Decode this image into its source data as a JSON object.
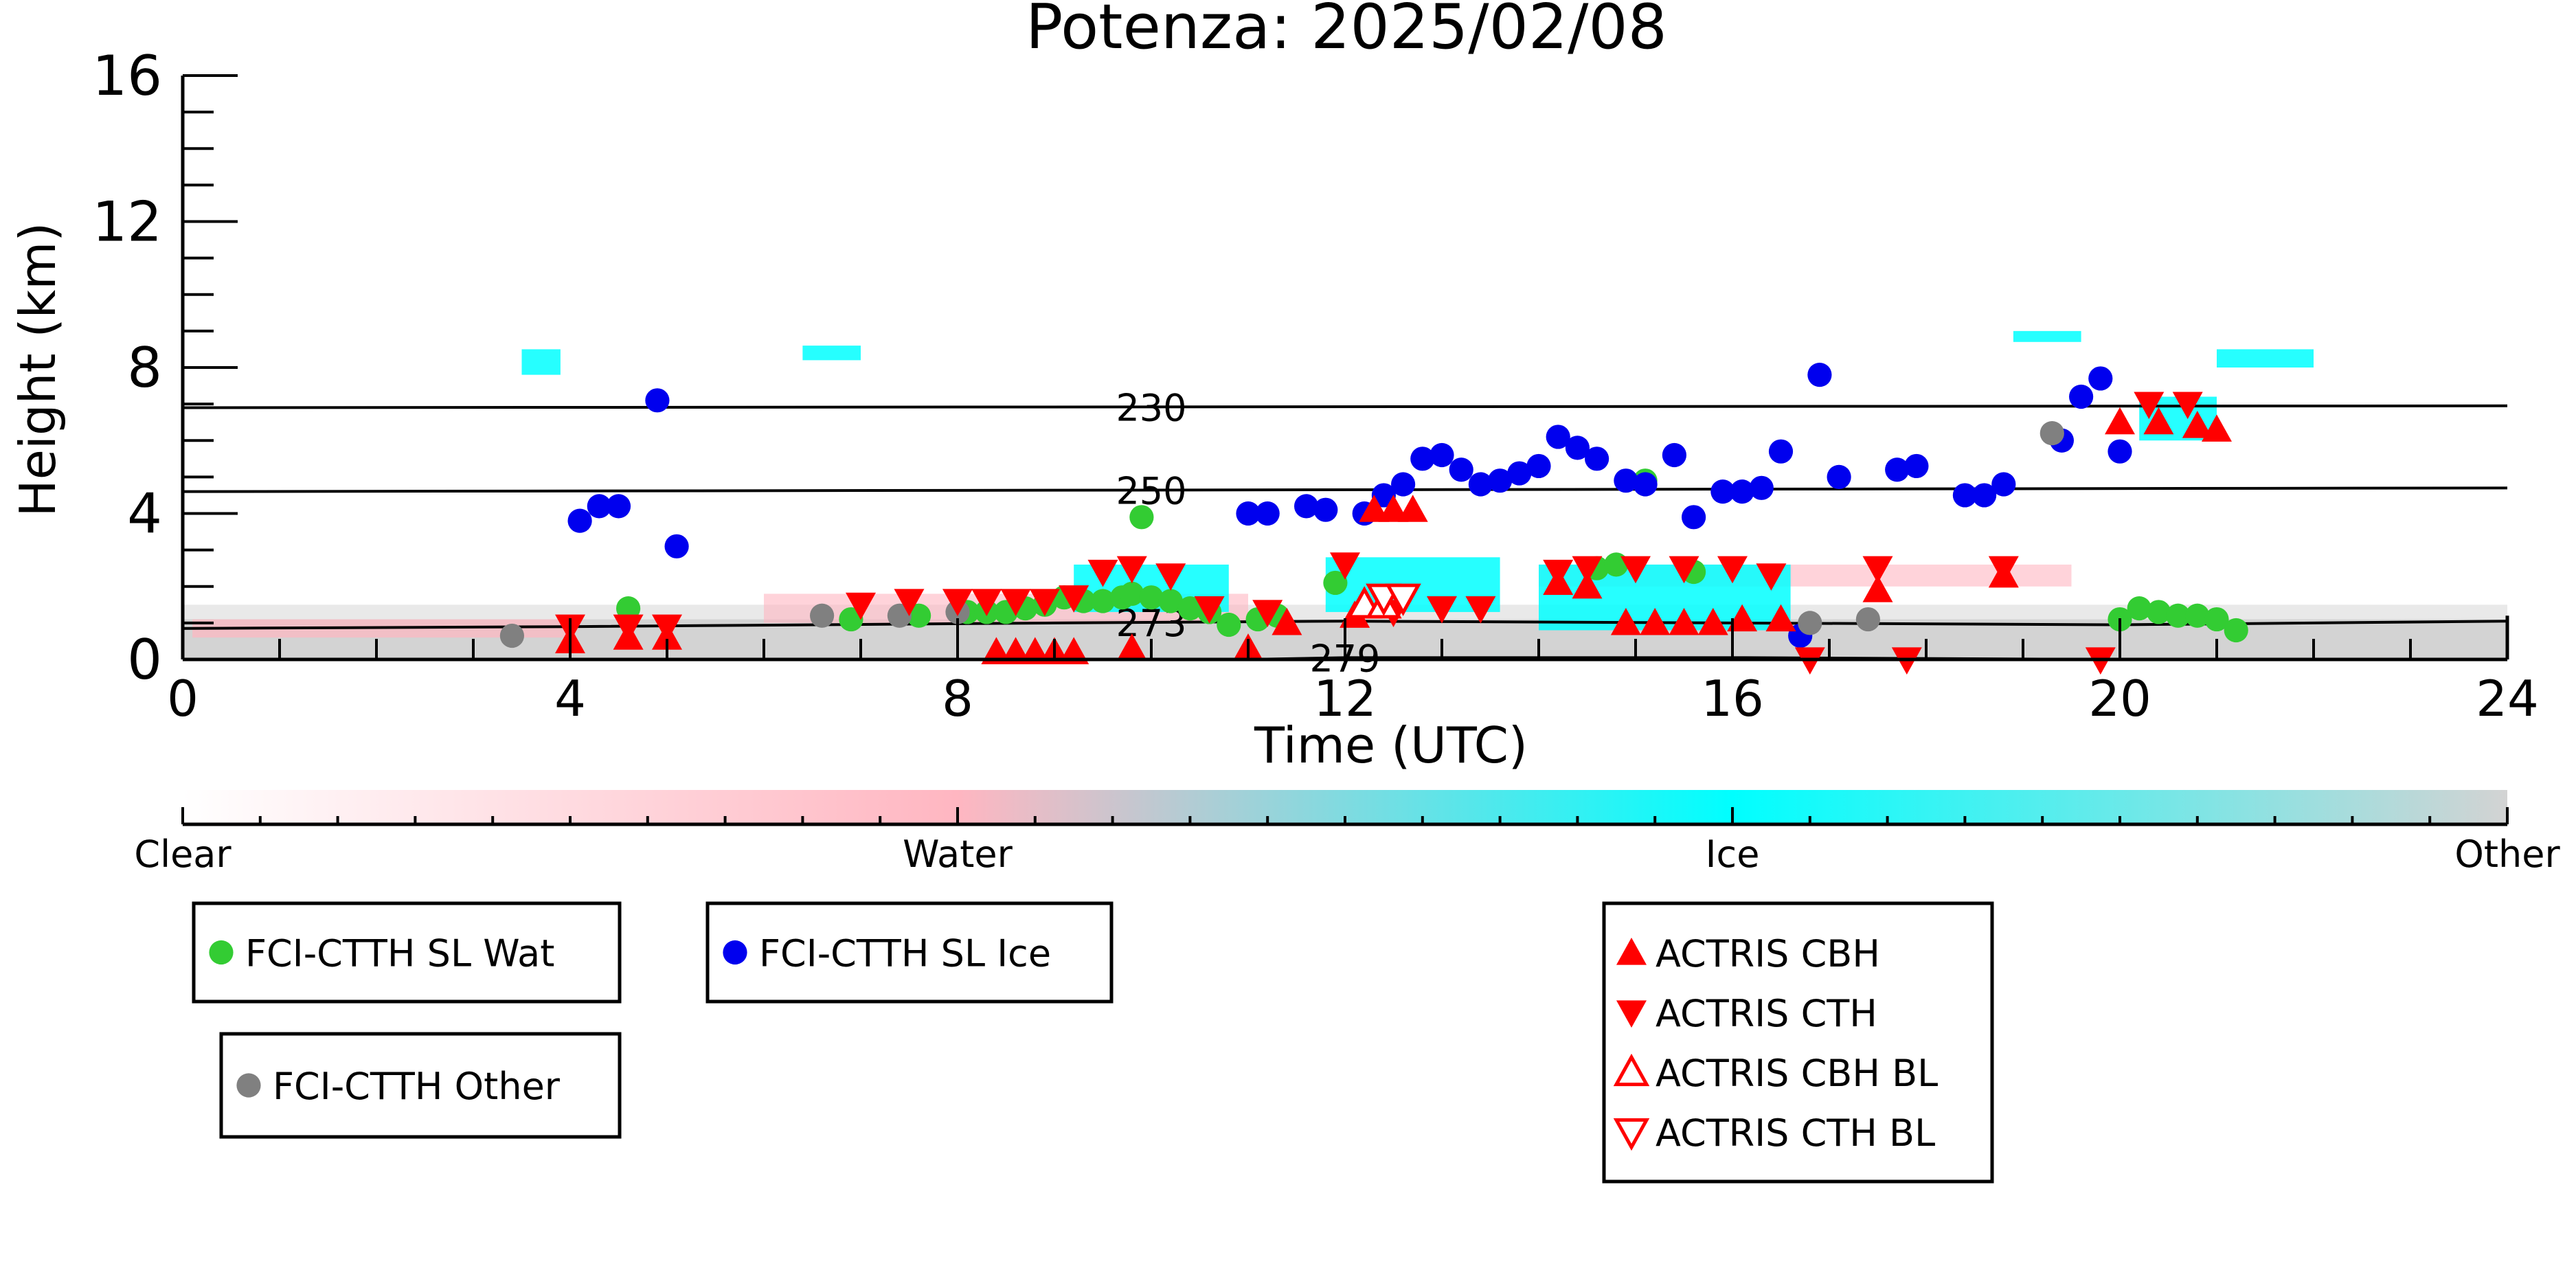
{
  "chart_data": {
    "type": "scatter",
    "title": "Potenza: 2025/02/08",
    "xlabel": "Time (UTC)",
    "ylabel": "Height (km)",
    "xlim": [
      0,
      24
    ],
    "ylim": [
      0,
      16
    ],
    "x_ticks": [
      "0",
      "4",
      "8",
      "12",
      "16",
      "20",
      "24"
    ],
    "y_ticks": [
      "0",
      "4",
      "8",
      "12",
      "16"
    ],
    "colorbar": {
      "labels": [
        "Clear",
        "Water",
        "Ice",
        "Other"
      ],
      "colors": [
        "#ffffff",
        "#ffb6c1",
        "#00ffff",
        "#d3d3d3"
      ]
    },
    "contours": [
      {
        "label": "230",
        "x": [
          0,
          24
        ],
        "y": [
          6.9,
          6.95
        ]
      },
      {
        "label": "250",
        "x": [
          0,
          24
        ],
        "y": [
          4.6,
          4.7
        ]
      },
      {
        "label": "273",
        "x": [
          0,
          4,
          9,
          12,
          16,
          20,
          24
        ],
        "y": [
          0.85,
          0.9,
          1.0,
          1.05,
          1.0,
          0.95,
          1.05
        ]
      },
      {
        "label": "279",
        "x": [
          11,
          12,
          16,
          20
        ],
        "y": [
          0.0,
          0.05,
          0.05,
          0.0
        ]
      }
    ],
    "series": [
      {
        "name": "FCI-CTTH SL Wat",
        "color": "#33cc33",
        "marker": "circle",
        "x": [
          4.6,
          6.9,
          7.6,
          8.1,
          8.3,
          8.5,
          8.7,
          8.9,
          9.1,
          9.3,
          9.5,
          9.7,
          9.8,
          10.0,
          10.2,
          10.4,
          10.6,
          10.8,
          9.9,
          11.1,
          11.3,
          11.9,
          14.6,
          14.8,
          15.1,
          15.6,
          20.0,
          20.2,
          20.4,
          20.6,
          20.8,
          21.0,
          21.2
        ],
        "y": [
          1.4,
          1.1,
          1.2,
          1.3,
          1.3,
          1.3,
          1.4,
          1.5,
          1.7,
          1.6,
          1.6,
          1.7,
          1.8,
          1.7,
          1.6,
          1.4,
          1.3,
          0.95,
          3.9,
          1.1,
          1.2,
          2.1,
          2.5,
          2.6,
          4.9,
          2.4,
          1.1,
          1.4,
          1.3,
          1.2,
          1.2,
          1.1,
          0.8
        ]
      },
      {
        "name": "FCI-CTTH SL Ice",
        "color": "#0000ee",
        "marker": "circle",
        "x": [
          4.1,
          4.3,
          4.5,
          4.9,
          5.1,
          11.0,
          11.2,
          11.6,
          11.8,
          12.2,
          12.4,
          12.6,
          12.8,
          13.0,
          13.2,
          13.4,
          13.6,
          13.8,
          14.0,
          14.2,
          14.4,
          14.6,
          14.9,
          15.1,
          15.4,
          15.6,
          15.9,
          16.1,
          16.3,
          16.5,
          16.7,
          16.9,
          17.1,
          17.7,
          17.9,
          18.4,
          18.6,
          18.8,
          19.4,
          19.6,
          19.8,
          20.0
        ],
        "y": [
          3.8,
          4.2,
          4.2,
          7.1,
          3.1,
          4.0,
          4.0,
          4.2,
          4.1,
          4.0,
          4.5,
          4.8,
          5.5,
          5.6,
          5.2,
          4.8,
          4.9,
          5.1,
          5.3,
          6.1,
          5.8,
          5.5,
          4.9,
          4.8,
          5.6,
          3.9,
          4.6,
          4.6,
          4.7,
          5.7,
          0.65,
          7.8,
          5.0,
          5.2,
          5.3,
          4.5,
          4.5,
          4.8,
          6.0,
          7.2,
          7.7,
          5.7
        ]
      },
      {
        "name": "FCI-CTTH Other",
        "color": "#808080",
        "marker": "circle",
        "x": [
          3.4,
          6.6,
          7.4,
          8.0,
          16.8,
          17.4,
          19.3
        ],
        "y": [
          0.65,
          1.2,
          1.2,
          1.3,
          1.0,
          1.1,
          6.2
        ]
      },
      {
        "name": "ACTRIS CBH",
        "color": "#ff0000",
        "marker": "triangle-up",
        "x": [
          4.0,
          4.6,
          5.0,
          8.4,
          8.6,
          8.8,
          9.0,
          9.2,
          9.8,
          11.0,
          11.4,
          12.1,
          12.3,
          12.5,
          12.7,
          14.2,
          14.5,
          14.9,
          15.2,
          15.5,
          15.8,
          16.1,
          16.5,
          17.5,
          18.8,
          20.0,
          20.4,
          20.8,
          21.0
        ],
        "y": [
          0.5,
          0.6,
          0.6,
          0.2,
          0.2,
          0.2,
          0.2,
          0.2,
          0.3,
          0.3,
          1.0,
          1.2,
          4.1,
          4.1,
          4.1,
          2.1,
          2.0,
          1.0,
          1.0,
          1.0,
          1.0,
          1.1,
          1.1,
          1.9,
          2.3,
          6.5,
          6.5,
          6.4,
          6.3
        ]
      },
      {
        "name": "ACTRIS CTH",
        "color": "#ff0000",
        "marker": "triangle-down",
        "x": [
          4.0,
          4.6,
          5.0,
          7.0,
          7.5,
          8.0,
          8.3,
          8.6,
          8.9,
          9.2,
          9.5,
          9.8,
          10.2,
          10.6,
          11.2,
          12.0,
          12.5,
          13.0,
          13.4,
          14.2,
          14.5,
          15.0,
          15.5,
          16.0,
          16.4,
          16.8,
          17.5,
          17.8,
          18.8,
          19.8,
          20.3,
          20.7
        ],
        "y": [
          0.9,
          0.9,
          0.9,
          1.5,
          1.6,
          1.6,
          1.6,
          1.6,
          1.6,
          1.7,
          2.4,
          2.5,
          2.3,
          1.4,
          1.3,
          2.6,
          1.3,
          1.4,
          1.4,
          2.4,
          2.5,
          2.5,
          2.5,
          2.5,
          2.3,
          0.0,
          2.5,
          0.0,
          2.5,
          0.0,
          7.0,
          7.0
        ]
      },
      {
        "name": "ACTRIS CBH BL",
        "color": "#ff0000",
        "marker": "triangle-up-open",
        "x": [
          12.2,
          12.4
        ],
        "y": [
          1.5,
          1.5
        ]
      },
      {
        "name": "ACTRIS CTH BL",
        "color": "#ff0000",
        "marker": "triangle-down-open",
        "x": [
          12.4,
          12.6
        ],
        "y": [
          1.7,
          1.7
        ]
      }
    ]
  },
  "legend_groups": [
    [
      "FCI-CTTH SL Wat"
    ],
    [
      "FCI-CTTH SL Ice"
    ],
    [
      "FCI-CTTH Other"
    ],
    [
      "ACTRIS CBH",
      "ACTRIS CTH",
      "ACTRIS CBH BL",
      "ACTRIS CTH BL"
    ]
  ]
}
